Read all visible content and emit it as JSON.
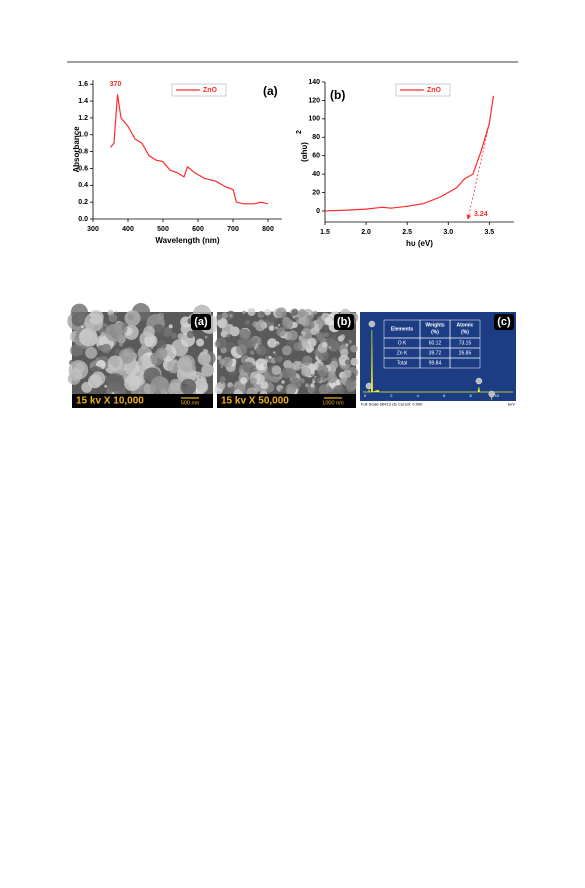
{
  "chart_data": [
    {
      "type": "line",
      "title": "(a)",
      "xlabel": "Wavelength (nm)",
      "ylabel": "Absorbance",
      "xlim": [
        300,
        840
      ],
      "xticks": [
        300,
        400,
        500,
        600,
        700,
        800
      ],
      "ylim": [
        0,
        1.65
      ],
      "yticks": [
        {
          "value": 0,
          "label": "0.0"
        },
        0.2,
        0.4,
        0.6,
        0.8,
        {
          "value": 1,
          "label": "1.0"
        },
        1.2,
        1.4,
        1.6
      ],
      "x": [
        350,
        360,
        370,
        380,
        400,
        420,
        440,
        460,
        480,
        500,
        520,
        540,
        560,
        570,
        590,
        620,
        650,
        680,
        700,
        710,
        730,
        760,
        780,
        800
      ],
      "series": [
        {
          "name": "ZnO",
          "color": "#ff2a2a",
          "values": [
            0.85,
            0.9,
            1.48,
            1.2,
            1.1,
            0.95,
            0.9,
            0.75,
            0.7,
            0.68,
            0.58,
            0.55,
            0.5,
            0.62,
            0.55,
            0.48,
            0.45,
            0.38,
            0.35,
            0.2,
            0.18,
            0.18,
            0.2,
            0.18
          ]
        }
      ],
      "annotations": [
        "370"
      ]
    },
    {
      "type": "line",
      "title": "(b)",
      "xlabel": "hυ (eV)",
      "ylabel": "(αhυ)",
      "ylabel_superscript": "2",
      "xlim": [
        1.5,
        3.8
      ],
      "xticks": [
        1.5,
        {
          "value": 2,
          "label": "2.0"
        },
        2.5,
        {
          "value": 3,
          "label": "3.0"
        },
        3.5
      ],
      "ylim": [
        -12,
        140
      ],
      "yticks": [
        0,
        20,
        40,
        60,
        80,
        100,
        120,
        140
      ],
      "x": [
        1.5,
        1.8,
        2.0,
        2.2,
        2.3,
        2.5,
        2.7,
        2.9,
        3.1,
        3.2,
        3.3,
        3.4,
        3.5,
        3.55
      ],
      "series": [
        {
          "name": "ZnO",
          "color": "#ff2a2a",
          "values": [
            0,
            1,
            2,
            4,
            3,
            5,
            8,
            15,
            25,
            35,
            40,
            65,
            95,
            125
          ]
        }
      ],
      "tangent": {
        "x": [
          3.24,
          3.5
        ],
        "values": [
          0,
          95
        ]
      },
      "annotations": [
        "3.24"
      ]
    }
  ],
  "figure2": {
    "panels": [
      {
        "label": "(a)",
        "caption": "15 kv X 10,000",
        "scale": "500 nm"
      },
      {
        "label": "(b)",
        "caption": "15 kv X 50,000",
        "scale": "1000 nm"
      },
      {
        "label": "(c)",
        "table": {
          "header": [
            [
              "Elements"
            ],
            [
              "Weights",
              "(%)"
            ],
            [
              "Atomic",
              "(%)"
            ]
          ],
          "rows": [
            [
              "O  K",
              "60.12",
              "73.15"
            ],
            [
              "Zn K",
              "39.72",
              "26.85"
            ],
            [
              "Total",
              "99.84"
            ]
          ]
        },
        "footer": "Full Scale 66413 cts Cursor: 0.000",
        "unit": "keV",
        "xticks": [
          0,
          2,
          4,
          6,
          8,
          10
        ]
      }
    ]
  }
}
